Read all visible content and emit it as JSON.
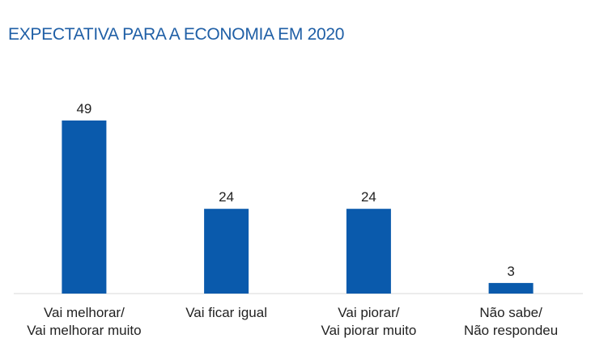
{
  "chart_data": {
    "type": "bar",
    "title": "EXPECTATIVA PARA A ECONOMIA EM 2020",
    "categories": [
      [
        "Vai melhorar/",
        "Vai melhorar muito"
      ],
      [
        "Vai ficar igual"
      ],
      [
        "Vai piorar/",
        "Vai piorar muito"
      ],
      [
        "Não sabe/",
        "Não respondeu"
      ]
    ],
    "values": [
      49,
      24,
      24,
      3
    ],
    "data_labels": [
      "49",
      "24",
      "24",
      "3"
    ],
    "xlabel": "",
    "ylabel": "",
    "ylim": [
      0,
      49
    ],
    "grid": false,
    "legend": "none"
  },
  "colors": {
    "title": "#1f5fa6",
    "bar": "#0a5aac",
    "baseline": "#d9d9d9"
  }
}
